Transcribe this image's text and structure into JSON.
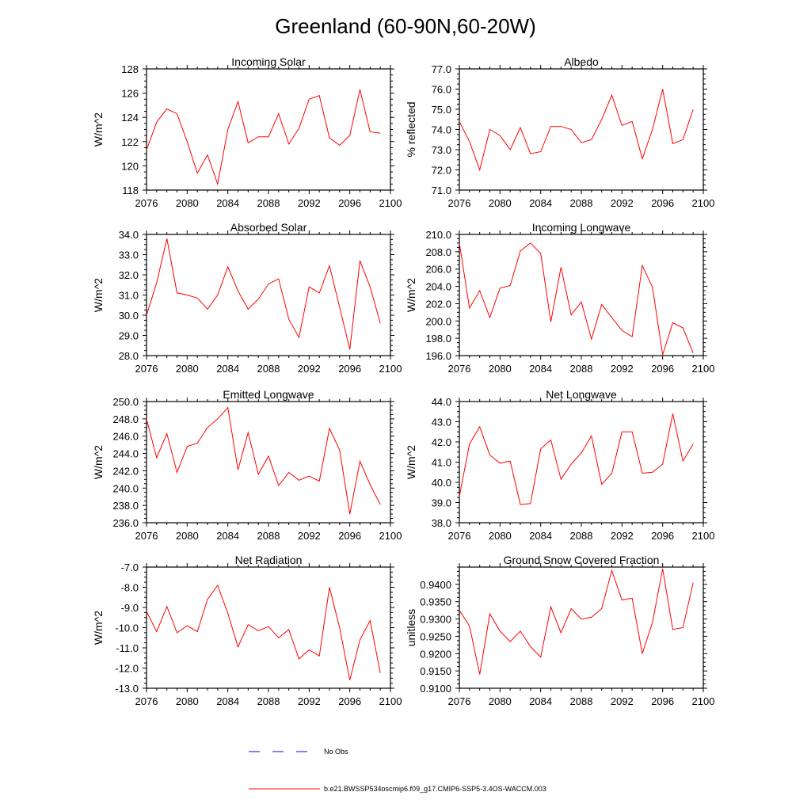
{
  "title": "Greenland (60-90N,60-20W)",
  "colors": {
    "series": "#ff0000",
    "obs": "#0000ff",
    "axis": "#000000"
  },
  "legend": {
    "obs_label": "No Obs",
    "series_label": "b.e21.BWSSP534oscmip6.f09_g17.CMIP6-SSP5-3.4OS-WACCM.003"
  },
  "chart_data": [
    {
      "type": "line",
      "title": "Incoming Solar",
      "ylabel": "W/m^2",
      "xlim": [
        2076,
        2100
      ],
      "xticks": [
        2076,
        2080,
        2084,
        2088,
        2092,
        2096,
        2100
      ],
      "ylim": [
        118,
        128
      ],
      "yticks": [
        118,
        120,
        122,
        124,
        126,
        128
      ],
      "ytick_labels": [
        "118",
        "120",
        "122",
        "124",
        "126",
        "128"
      ],
      "x": [
        2076,
        2077,
        2078,
        2079,
        2080,
        2081,
        2082,
        2083,
        2084,
        2085,
        2086,
        2087,
        2088,
        2089,
        2090,
        2091,
        2092,
        2093,
        2094,
        2095,
        2096,
        2097,
        2098,
        2099
      ],
      "values": [
        121.3,
        123.6,
        124.7,
        124.3,
        122.0,
        119.4,
        120.9,
        118.5,
        123.0,
        125.3,
        121.9,
        122.4,
        122.4,
        124.3,
        121.8,
        123.1,
        125.5,
        125.8,
        122.3,
        121.7,
        122.5,
        126.3,
        122.8,
        122.7
      ]
    },
    {
      "type": "line",
      "title": "Albedo",
      "ylabel": "% reflected",
      "xlim": [
        2076,
        2100
      ],
      "xticks": [
        2076,
        2080,
        2084,
        2088,
        2092,
        2096,
        2100
      ],
      "ylim": [
        71,
        77
      ],
      "yticks": [
        71,
        72,
        73,
        74,
        75,
        76,
        77
      ],
      "ytick_labels": [
        "71.0",
        "72.0",
        "73.0",
        "74.0",
        "75.0",
        "76.0",
        "77.0"
      ],
      "x": [
        2076,
        2077,
        2078,
        2079,
        2080,
        2081,
        2082,
        2083,
        2084,
        2085,
        2086,
        2087,
        2088,
        2089,
        2090,
        2091,
        2092,
        2093,
        2094,
        2095,
        2096,
        2097,
        2098,
        2099
      ],
      "values": [
        74.4,
        73.4,
        72.0,
        74.0,
        73.7,
        73.0,
        74.1,
        72.8,
        72.9,
        74.15,
        74.15,
        74.0,
        73.35,
        73.5,
        74.5,
        75.7,
        74.2,
        74.4,
        72.55,
        74.0,
        76.0,
        73.3,
        73.5,
        75.0
      ]
    },
    {
      "type": "line",
      "title": "Absorbed Solar",
      "ylabel": "W/m^2",
      "xlim": [
        2076,
        2100
      ],
      "xticks": [
        2076,
        2080,
        2084,
        2088,
        2092,
        2096,
        2100
      ],
      "ylim": [
        28,
        34
      ],
      "yticks": [
        28,
        29,
        30,
        31,
        32,
        33,
        34
      ],
      "ytick_labels": [
        "28.0",
        "29.0",
        "30.0",
        "31.0",
        "32.0",
        "33.0",
        "34.0"
      ],
      "x": [
        2076,
        2077,
        2078,
        2079,
        2080,
        2081,
        2082,
        2083,
        2084,
        2085,
        2086,
        2087,
        2088,
        2089,
        2090,
        2091,
        2092,
        2093,
        2094,
        2095,
        2096,
        2097,
        2098,
        2099
      ],
      "values": [
        30.0,
        31.6,
        33.8,
        31.1,
        31.0,
        30.85,
        30.3,
        31.0,
        32.4,
        31.2,
        30.3,
        30.8,
        31.55,
        31.8,
        29.8,
        28.9,
        31.4,
        31.1,
        32.45,
        30.4,
        28.3,
        32.7,
        31.4,
        29.6
      ]
    },
    {
      "type": "line",
      "title": "Incoming Longwave",
      "ylabel": "W/m^2",
      "xlim": [
        2076,
        2100
      ],
      "xticks": [
        2076,
        2080,
        2084,
        2088,
        2092,
        2096,
        2100
      ],
      "ylim": [
        196,
        210
      ],
      "yticks": [
        196,
        198,
        200,
        202,
        204,
        206,
        208,
        210
      ],
      "ytick_labels": [
        "196.0",
        "198.0",
        "200.0",
        "202.0",
        "204.0",
        "206.0",
        "208.0",
        "210.0"
      ],
      "x": [
        2076,
        2077,
        2078,
        2079,
        2080,
        2081,
        2082,
        2083,
        2084,
        2085,
        2086,
        2087,
        2088,
        2089,
        2090,
        2091,
        2092,
        2093,
        2094,
        2095,
        2096,
        2097,
        2098,
        2099
      ],
      "values": [
        209.0,
        201.5,
        203.5,
        200.4,
        203.8,
        204.1,
        208.1,
        209.0,
        207.8,
        199.9,
        206.2,
        200.7,
        202.2,
        197.9,
        201.9,
        200.4,
        198.9,
        198.2,
        206.4,
        203.9,
        196.1,
        199.8,
        199.2,
        196.3
      ]
    },
    {
      "type": "line",
      "title": "Emitted Longwave",
      "ylabel": "W/m^2",
      "xlim": [
        2076,
        2100
      ],
      "xticks": [
        2076,
        2080,
        2084,
        2088,
        2092,
        2096,
        2100
      ],
      "ylim": [
        236,
        250
      ],
      "yticks": [
        236,
        238,
        240,
        242,
        244,
        246,
        248,
        250
      ],
      "ytick_labels": [
        "236.0",
        "238.0",
        "240.0",
        "242.0",
        "244.0",
        "246.0",
        "248.0",
        "250.0"
      ],
      "x": [
        2076,
        2077,
        2078,
        2079,
        2080,
        2081,
        2082,
        2083,
        2084,
        2085,
        2086,
        2087,
        2088,
        2089,
        2090,
        2091,
        2092,
        2093,
        2094,
        2095,
        2096,
        2097,
        2098,
        2099
      ],
      "values": [
        248.0,
        243.5,
        246.3,
        241.8,
        244.8,
        245.2,
        247.0,
        248.0,
        249.3,
        242.1,
        246.4,
        241.6,
        243.7,
        240.3,
        241.8,
        240.9,
        241.4,
        240.8,
        246.9,
        244.4,
        237.0,
        243.1,
        240.4,
        238.1
      ]
    },
    {
      "type": "line",
      "title": "Net Longwave",
      "ylabel": "W/m^2",
      "xlim": [
        2076,
        2100
      ],
      "xticks": [
        2076,
        2080,
        2084,
        2088,
        2092,
        2096,
        2100
      ],
      "ylim": [
        38,
        44
      ],
      "yticks": [
        38,
        39,
        40,
        41,
        42,
        43,
        44
      ],
      "ytick_labels": [
        "38.0",
        "39.0",
        "40.0",
        "41.0",
        "42.0",
        "43.0",
        "44.0"
      ],
      "x": [
        2076,
        2077,
        2078,
        2079,
        2080,
        2081,
        2082,
        2083,
        2084,
        2085,
        2086,
        2087,
        2088,
        2089,
        2090,
        2091,
        2092,
        2093,
        2094,
        2095,
        2096,
        2097,
        2098,
        2099
      ],
      "values": [
        39.3,
        41.9,
        42.75,
        41.35,
        40.95,
        41.05,
        38.9,
        38.95,
        41.65,
        42.1,
        40.15,
        40.9,
        41.45,
        42.3,
        39.9,
        40.45,
        42.5,
        42.5,
        40.45,
        40.5,
        40.9,
        43.4,
        41.05,
        41.9
      ]
    },
    {
      "type": "line",
      "title": "Net Radiation",
      "ylabel": "W/m^2",
      "xlim": [
        2076,
        2100
      ],
      "xticks": [
        2076,
        2080,
        2084,
        2088,
        2092,
        2096,
        2100
      ],
      "ylim": [
        -13,
        -7
      ],
      "yticks": [
        -13,
        -12,
        -11,
        -10,
        -9,
        -8,
        -7
      ],
      "ytick_labels": [
        "-13.0",
        "-12.0",
        "-11.0",
        "-10.0",
        "-9.0",
        "-8.0",
        "-7.0"
      ],
      "x": [
        2076,
        2077,
        2078,
        2079,
        2080,
        2081,
        2082,
        2083,
        2084,
        2085,
        2086,
        2087,
        2088,
        2089,
        2090,
        2091,
        2092,
        2093,
        2094,
        2095,
        2096,
        2097,
        2098,
        2099
      ],
      "values": [
        -9.2,
        -10.2,
        -8.95,
        -10.25,
        -9.9,
        -10.2,
        -8.6,
        -7.9,
        -9.3,
        -10.95,
        -9.85,
        -10.15,
        -9.95,
        -10.5,
        -10.1,
        -11.55,
        -11.1,
        -11.4,
        -8.0,
        -10.0,
        -12.6,
        -10.6,
        -9.65,
        -12.25
      ]
    },
    {
      "type": "line",
      "title": "Ground Snow Covered Fraction",
      "ylabel": "unitless",
      "xlim": [
        2076,
        2100
      ],
      "xticks": [
        2076,
        2080,
        2084,
        2088,
        2092,
        2096,
        2100
      ],
      "ylim": [
        0.91,
        0.945
      ],
      "yticks": [
        0.91,
        0.915,
        0.92,
        0.925,
        0.93,
        0.935,
        0.94
      ],
      "ytick_labels": [
        "0.9100",
        "0.9150",
        "0.9200",
        "0.9250",
        "0.9300",
        "0.9350",
        "0.9400"
      ],
      "x": [
        2076,
        2077,
        2078,
        2079,
        2080,
        2081,
        2082,
        2083,
        2084,
        2085,
        2086,
        2087,
        2088,
        2089,
        2090,
        2091,
        2092,
        2093,
        2094,
        2095,
        2096,
        2097,
        2098,
        2099
      ],
      "values": [
        0.9325,
        0.928,
        0.914,
        0.9315,
        0.9265,
        0.9235,
        0.9265,
        0.922,
        0.919,
        0.9335,
        0.926,
        0.933,
        0.93,
        0.9305,
        0.933,
        0.944,
        0.9355,
        0.936,
        0.92,
        0.929,
        0.9445,
        0.927,
        0.9275,
        0.9405
      ]
    }
  ]
}
